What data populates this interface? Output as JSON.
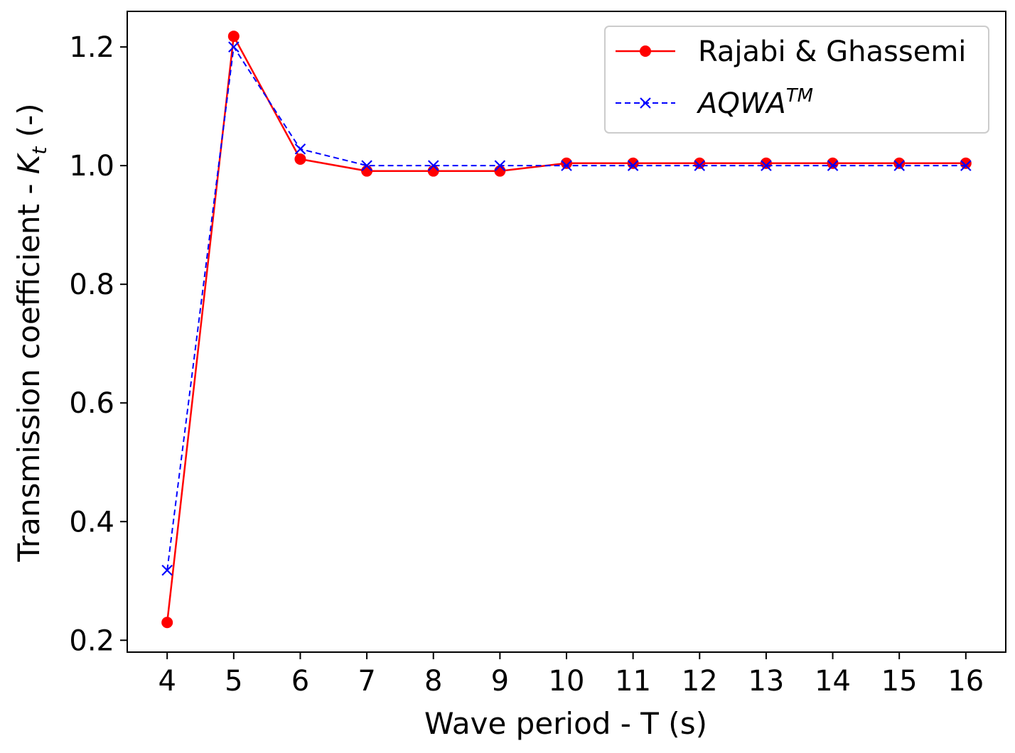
{
  "chart_data": {
    "type": "line",
    "title": "",
    "xlabel": "Wave period - T (s)",
    "ylabel_prefix": "Transmission coefficient - ",
    "ylabel_symbol": "K",
    "ylabel_subscript": "t",
    "ylabel_suffix": " (-)",
    "xlim": [
      3.4,
      16.6
    ],
    "ylim": [
      0.18,
      1.26
    ],
    "xticks": [
      4,
      5,
      6,
      7,
      8,
      9,
      10,
      11,
      12,
      13,
      14,
      15,
      16
    ],
    "yticks": [
      0.2,
      0.4,
      0.6,
      0.8,
      1.0,
      1.2
    ],
    "ytick_labels": [
      "0.2",
      "0.4",
      "0.6",
      "0.8",
      "1.0",
      "1.2"
    ],
    "grid": false,
    "legend_position": "top-right",
    "x": [
      4,
      5,
      6,
      7,
      8,
      9,
      10,
      11,
      12,
      13,
      14,
      15,
      16
    ],
    "series": [
      {
        "name": "Rajabi & Ghassemi",
        "color": "#ff0000",
        "line_style": "solid",
        "marker": "circle",
        "values": [
          0.23,
          1.218,
          1.011,
          0.991,
          0.991,
          0.991,
          1.004,
          1.004,
          1.004,
          1.004,
          1.004,
          1.004,
          1.004
        ]
      },
      {
        "name_base": "AQWA",
        "name_superscript": "TM",
        "color": "#0000ff",
        "line_style": "dashed",
        "marker": "x",
        "values": [
          0.318,
          1.2,
          1.028,
          1.0,
          1.0,
          1.0,
          1.0,
          1.0,
          1.0,
          1.0,
          1.0,
          1.0,
          1.0
        ]
      }
    ]
  }
}
